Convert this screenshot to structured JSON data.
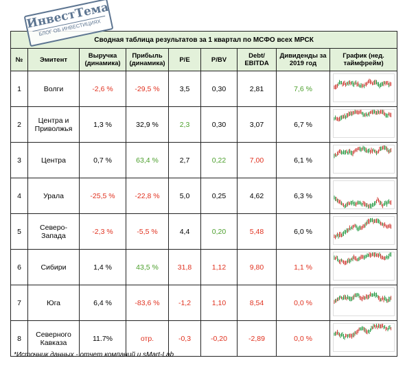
{
  "logo": {
    "name": "ИнвестТема",
    "tagline": "БЛОГ ОБ ИНВЕСТИЦИЯХ"
  },
  "table": {
    "title": "Сводная таблица результатов за 1 квартал по МСФО всех МРСК",
    "columns": [
      "№",
      "Эмитент",
      "Выручка (динамика)",
      "Прибыль (динамика)",
      "P/E",
      "P/BV",
      "Debt/ EBITDA",
      "Дивиденды за 2019 год",
      "График (нед. таймфрейм)"
    ],
    "rows": [
      [
        "1",
        "Волги",
        "-2,6 %",
        "-29,5 %",
        "3,5",
        "0,30",
        "2,81",
        "7,6 %"
      ],
      [
        "2",
        "Центра и Приволжья",
        "1,3 %",
        "32,9 %",
        "2,3",
        "0,30",
        "3,07",
        "6,7 %"
      ],
      [
        "3",
        "Центра",
        "0,7 %",
        "63,4 %",
        "2,7",
        "0,22",
        "7,00",
        "6,1 %"
      ],
      [
        "4",
        "Урала",
        "-25,5 %",
        "-22,8 %",
        "5,0",
        "0,25",
        "4,62",
        "6,3 %"
      ],
      [
        "5",
        "Северо-Запада",
        "-2,3 %",
        "-5,5 %",
        "4,4",
        "0,20",
        "5,48",
        "6,0 %"
      ],
      [
        "6",
        "Сибири",
        "1,4 %",
        "43,5 %",
        "31,8",
        "1,12",
        "9,80",
        "1,1 %"
      ],
      [
        "7",
        "Юга",
        "6,4 %",
        "-83,6 %",
        "-1,2",
        "1,10",
        "8,54",
        "0,0 %"
      ],
      [
        "8",
        "Северного Кавказа",
        "11.7%",
        "отр.",
        "-0,3",
        "-0,20",
        "-2,89",
        "0,0 %"
      ]
    ],
    "cell_colors": [
      [
        "#000000",
        "#000000",
        "#e0301e",
        "#e0301e",
        "#000000",
        "#000000",
        "#000000",
        "#4a9e2a"
      ],
      [
        "#000000",
        "#000000",
        "#000000",
        "#000000",
        "#4a9e2a",
        "#000000",
        "#000000",
        "#000000"
      ],
      [
        "#000000",
        "#000000",
        "#000000",
        "#4a9e2a",
        "#000000",
        "#4a9e2a",
        "#e0301e",
        "#000000"
      ],
      [
        "#000000",
        "#000000",
        "#e0301e",
        "#e0301e",
        "#000000",
        "#000000",
        "#000000",
        "#000000"
      ],
      [
        "#000000",
        "#000000",
        "#e0301e",
        "#e0301e",
        "#000000",
        "#4a9e2a",
        "#e0301e",
        "#000000"
      ],
      [
        "#000000",
        "#000000",
        "#000000",
        "#4a9e2a",
        "#e0301e",
        "#e0301e",
        "#e0301e",
        "#e0301e"
      ],
      [
        "#000000",
        "#000000",
        "#000000",
        "#e0301e",
        "#e0301e",
        "#e0301e",
        "#e0301e",
        "#e0301e"
      ],
      [
        "#000000",
        "#000000",
        "#000000",
        "#e0301e",
        "#e0301e",
        "#e0301e",
        "#e0301e",
        "#e0301e"
      ]
    ]
  },
  "footnote": "*Источник данных - отчет компаний и sMart-Lab"
}
